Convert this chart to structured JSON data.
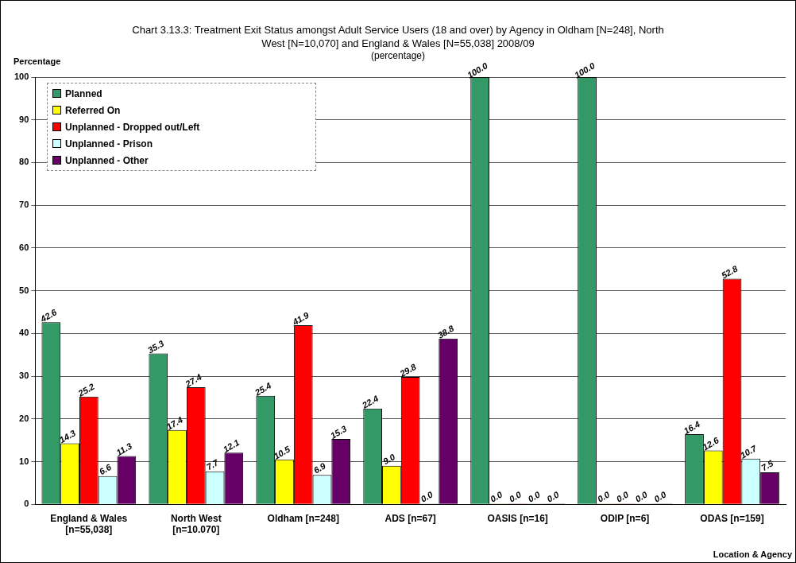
{
  "chart_data": {
    "type": "bar",
    "title": "Chart 3.13.3: Treatment Exit Status amongst Adult Service Users (18 and over) by Agency in Oldham [N=248], North West [N=10,070] and England & Wales [N=55,038] 2008/09",
    "subtitle": "(percentage)",
    "ylabel": "Percentage",
    "xlabel": "Location & Agency",
    "categories": [
      "England & Wales [n=55,038]",
      "North West [n=10.070]",
      "Oldham [n=248]",
      "ADS [n=67]",
      "OASIS [n=16]",
      "ODIP [n=6]",
      "ODAS [n=159]"
    ],
    "series": [
      {
        "name": "Planned",
        "color": "#339966",
        "values": [
          42.6,
          35.3,
          25.4,
          22.4,
          100,
          100,
          16.4
        ],
        "value_labels": [
          "42.6",
          "35.3",
          "25.4",
          "22.4",
          "100.0",
          "100.0",
          "16.4"
        ]
      },
      {
        "name": "Referred On",
        "color": "#ffff00",
        "values": [
          14.3,
          17.4,
          10.5,
          9,
          0,
          0,
          12.6
        ],
        "value_labels": [
          "14.3",
          "17.4",
          "10.5",
          "9.0",
          "0.0",
          "0.0",
          "12.6"
        ]
      },
      {
        "name": "Unplanned - Dropped out/Left",
        "color": "#ff0000",
        "values": [
          25.2,
          27.4,
          41.9,
          29.8,
          0,
          0,
          52.8
        ],
        "value_labels": [
          "25.2",
          "27.4",
          "41.9",
          "29.8",
          "0.0",
          "0.0",
          "52.8"
        ]
      },
      {
        "name": "Unplanned - Prison",
        "color": "#ccffff",
        "values": [
          6.6,
          7.7,
          6.9,
          0,
          0,
          0,
          10.7
        ],
        "value_labels": [
          "6.6",
          "7.7",
          "6.9",
          "0.0",
          "0.0",
          "0.0",
          "10.7"
        ]
      },
      {
        "name": "Unplanned - Other",
        "color": "#660066",
        "values": [
          11.3,
          12.1,
          15.3,
          38.8,
          0,
          0,
          7.5
        ],
        "value_labels": [
          "11.3",
          "12.1",
          "15.3",
          "38.8",
          "0.0",
          "0.0",
          "7.5"
        ]
      }
    ],
    "ylim": [
      0,
      100
    ],
    "yticks": [
      0,
      10,
      20,
      30,
      40,
      50,
      60,
      70,
      80,
      90,
      100
    ],
    "grid": "y",
    "legend": "top left"
  }
}
